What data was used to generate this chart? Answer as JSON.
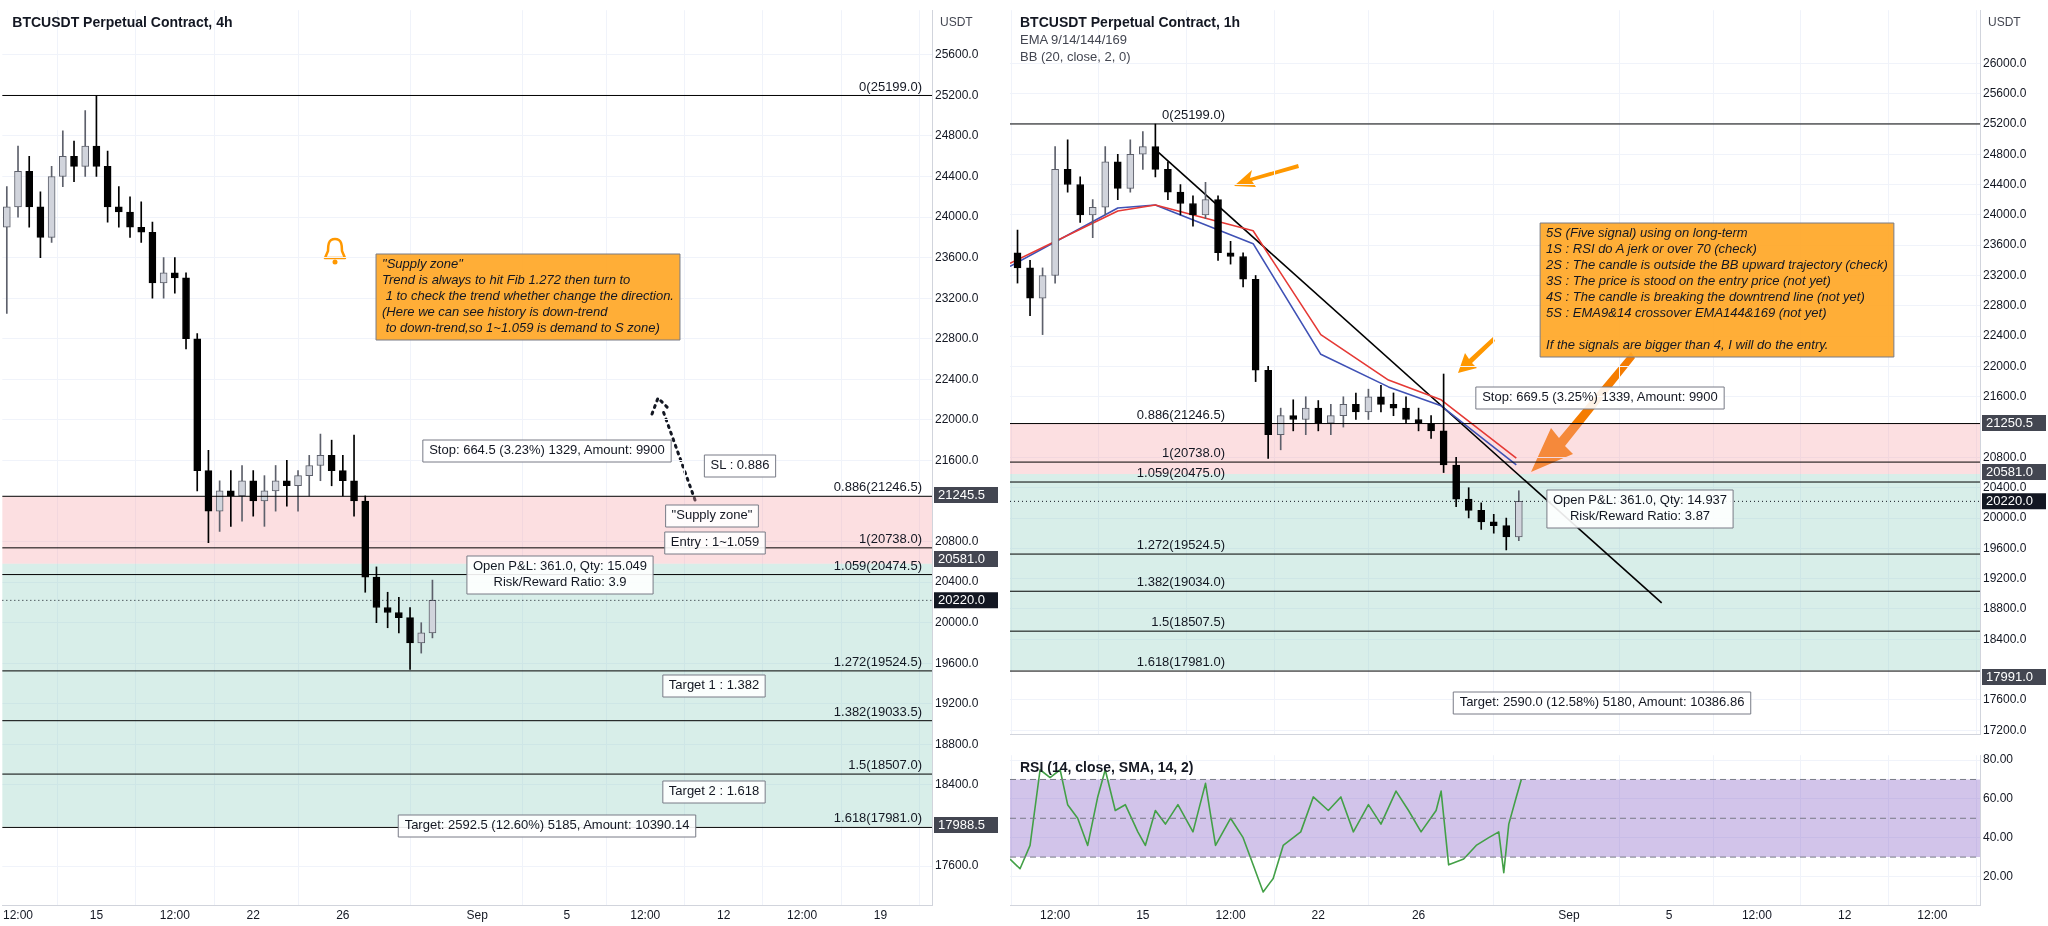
{
  "chart_data": [
    {
      "type": "candlestick",
      "title": "BTCUSDT Perpetual Contract, 4h",
      "ylabel": "USDT",
      "x": [
        "--08-11T00:00",
        "--08-11T12:00",
        "--08-12T00:00",
        "--08-12T12:00",
        "--08-13T00:00",
        "--08-13T12:00",
        "--08-14T00:00",
        "--08-14T12:00",
        "--08-15T00:00",
        "--08-15T12:00",
        "--08-16T00:00",
        "--08-16T12:00",
        "--08-17T00:00",
        "--08-17T12:00",
        "--08-18T00:00",
        "--08-18T12:00",
        "--08-19T00:00",
        "--08-19T12:00",
        "--08-20T00:00",
        "--08-20T12:00",
        "--08-21T00:00",
        "--08-21T12:00",
        "--08-22T00:00",
        "--08-22T12:00",
        "--08-23T00:00",
        "--08-23T12:00",
        "--08-24T00:00",
        "--08-24T12:00",
        "--08-25T00:00",
        "--08-25T12:00",
        "--08-26T00:00",
        "--08-26T12:00",
        "--08-27T00:00",
        "--08-27T12:00",
        "--08-28T00:00",
        "--08-28T12:00",
        "--08-29T00:00",
        "--08-29T12:00",
        "--08-30T00:00"
      ],
      "ohlc": [
        [
          23900,
          24300,
          23050,
          24100
        ],
        [
          24100,
          24700,
          24000,
          24450
        ],
        [
          24450,
          24600,
          23900,
          24100
        ],
        [
          24100,
          24250,
          23600,
          23800
        ],
        [
          23800,
          24500,
          23750,
          24400
        ],
        [
          24400,
          24850,
          24300,
          24600
        ],
        [
          24600,
          24750,
          24350,
          24500
        ],
        [
          24500,
          25050,
          24400,
          24700
        ],
        [
          24700,
          25199,
          24400,
          24500
        ],
        [
          24500,
          24650,
          23950,
          24100
        ],
        [
          24100,
          24300,
          23900,
          24050
        ],
        [
          24050,
          24200,
          23800,
          23900
        ],
        [
          23900,
          24150,
          23750,
          23850
        ],
        [
          23850,
          23950,
          23200,
          23350
        ],
        [
          23350,
          23600,
          23200,
          23450
        ],
        [
          23450,
          23600,
          23250,
          23400
        ],
        [
          23400,
          23450,
          22700,
          22800
        ],
        [
          22800,
          22850,
          21300,
          21500
        ],
        [
          21500,
          21700,
          20790,
          21100
        ],
        [
          21100,
          21400,
          20900,
          21300
        ],
        [
          21300,
          21500,
          20950,
          21250
        ],
        [
          21250,
          21550,
          21000,
          21400
        ],
        [
          21400,
          21500,
          21050,
          21200
        ],
        [
          21200,
          21450,
          20950,
          21300
        ],
        [
          21300,
          21550,
          21100,
          21400
        ],
        [
          21400,
          21600,
          21150,
          21350
        ],
        [
          21350,
          21500,
          21100,
          21450
        ],
        [
          21450,
          21650,
          21250,
          21550
        ],
        [
          21550,
          21860,
          21400,
          21650
        ],
        [
          21650,
          21800,
          21350,
          21500
        ],
        [
          21500,
          21650,
          21250,
          21400
        ],
        [
          21400,
          21850,
          21050,
          21200
        ],
        [
          21200,
          21250,
          20300,
          20450
        ],
        [
          20450,
          20550,
          20000,
          20150
        ],
        [
          20150,
          20300,
          19950,
          20100
        ],
        [
          20100,
          20250,
          19900,
          20050
        ],
        [
          20050,
          20150,
          19540,
          19800
        ],
        [
          19800,
          20000,
          19700,
          19900
        ],
        [
          19900,
          20420,
          19850,
          20220
        ]
      ],
      "xlim": [
        "--08-10T19:12",
        "--09-21T07:12"
      ],
      "xticks": [
        {
          "value": "--08-11T12:00",
          "label": "12:00"
        },
        {
          "value": "--08-15",
          "label": "15"
        },
        {
          "value": "--08-18T12:00",
          "label": "12:00"
        },
        {
          "value": "--08-22",
          "label": "22"
        },
        {
          "value": "--08-26",
          "label": "26"
        },
        {
          "value": "--09-01",
          "label": "Sep"
        },
        {
          "value": "--09-05",
          "label": "5"
        },
        {
          "value": "--09-08T12:00",
          "label": "12:00"
        },
        {
          "value": "--09-12",
          "label": "12"
        },
        {
          "value": "--09-15T12:00",
          "label": "12:00"
        },
        {
          "value": "--09-19",
          "label": "19"
        }
      ],
      "ylim": [
        17210,
        26040
      ],
      "yticks": [
        {
          "value": 17600,
          "label": "17600.0"
        },
        {
          "value": 18400,
          "label": "18400.0"
        },
        {
          "value": 18800,
          "label": "18800.0"
        },
        {
          "value": 19200,
          "label": "19200.0"
        },
        {
          "value": 19600,
          "label": "19600.0"
        },
        {
          "value": 20000,
          "label": "20000.0"
        },
        {
          "value": 20400,
          "label": "20400.0"
        },
        {
          "value": 20800,
          "label": "20800.0"
        },
        {
          "value": 21600,
          "label": "21600.0"
        },
        {
          "value": 22000,
          "label": "22000.0"
        },
        {
          "value": 22400,
          "label": "22400.0"
        },
        {
          "value": 22800,
          "label": "22800.0"
        },
        {
          "value": 23200,
          "label": "23200.0"
        },
        {
          "value": 23600,
          "label": "23600.0"
        },
        {
          "value": 24000,
          "label": "24000.0"
        },
        {
          "value": 24400,
          "label": "24400.0"
        },
        {
          "value": 24800,
          "label": "24800.0"
        },
        {
          "value": 25200,
          "label": "25200.0"
        },
        {
          "value": 25600,
          "label": "25600.0"
        }
      ],
      "grid": true,
      "bands": [
        {
          "axis": "y",
          "from": 20581,
          "to": 21245.5,
          "color": "#f5a3a9"
        },
        {
          "axis": "y",
          "from": 17988.5,
          "to": 20581,
          "color": "#8fcfc0"
        }
      ],
      "ref_lines": [
        {
          "axis": "y",
          "value": 25199,
          "label": "0(25199.0)",
          "color": "#000000"
        },
        {
          "axis": "y",
          "value": 21246.5,
          "label": "0.886(21246.5)",
          "color": "#000000"
        },
        {
          "axis": "y",
          "value": 20738,
          "label": "1(20738.0)",
          "color": "#000000"
        },
        {
          "axis": "y",
          "value": 20474.5,
          "label": "1.059(20474.5)",
          "color": "#000000"
        },
        {
          "axis": "y",
          "value": 19524.5,
          "label": "1.272(19524.5)",
          "color": "#000000"
        },
        {
          "axis": "y",
          "value": 19033.5,
          "label": "1.382(19033.5)",
          "color": "#000000"
        },
        {
          "axis": "y",
          "value": 18507,
          "label": "1.5(18507.0)",
          "color": "#000000"
        },
        {
          "axis": "y",
          "value": 17981,
          "label": "1.618(17981.0)",
          "color": "#000000"
        },
        {
          "axis": "y",
          "value": 20220,
          "label": "20220.0",
          "color": "#131722",
          "line_style": "dotted"
        }
      ],
      "annotations": [
        "\"Supply zone\"\nTrend is always to hit Fib 1.272 then turn to\n 1 to check the trend whether change the direction.\n(Here we can see history is down-trend\n to down-trend,so 1~1.059 is demand to S zone)",
        "Stop: 664.5 (3.23%) 1329, Amount: 9900",
        "SL : 0.886",
        "\"Supply zone\"",
        "Entry : 1~1.059",
        "Open P&L: 361.0, Qty: 15.049\nRisk/Reward Ratio: 3.9",
        "Target 1 : 1.382",
        "Target 2 : 1.618",
        "Target: 2592.5 (12.60%) 5185, Amount: 10390.14",
        "21245.5",
        "20581.0",
        "17988.5"
      ]
    },
    {
      "type": "candlestick",
      "title": "BTCUSDT Perpetual Contract, 1h",
      "subtitle": "EMA 9/14/144/169\nBB (20, close, 2, 0)",
      "ylabel": "USDT",
      "x": [
        "--08-10T00:00",
        "--08-10T12:00",
        "--08-11T00:00",
        "--08-11T12:00",
        "--08-12T00:00",
        "--08-12T12:00",
        "--08-13T00:00",
        "--08-13T12:00",
        "--08-14T00:00",
        "--08-14T12:00",
        "--08-15T00:00",
        "--08-15T12:00",
        "--08-16T00:00",
        "--08-16T12:00",
        "--08-17T00:00",
        "--08-17T12:00",
        "--08-18T00:00",
        "--08-18T12:00",
        "--08-19T00:00",
        "--08-19T12:00",
        "--08-20T00:00",
        "--08-20T12:00",
        "--08-21T00:00",
        "--08-21T12:00",
        "--08-22T00:00",
        "--08-22T12:00",
        "--08-23T00:00",
        "--08-23T12:00",
        "--08-24T00:00",
        "--08-24T12:00",
        "--08-25T00:00",
        "--08-25T12:00",
        "--08-26T00:00",
        "--08-26T12:00",
        "--08-27T00:00",
        "--08-27T12:00",
        "--08-28T00:00",
        "--08-28T12:00",
        "--08-29T00:00",
        "--08-29T12:00",
        "--08-30T00:00"
      ],
      "ohlc": [
        [
          23500,
          23800,
          23100,
          23300
        ],
        [
          23300,
          23400,
          22670,
          22900
        ],
        [
          22900,
          23300,
          22420,
          23200
        ],
        [
          23200,
          24900,
          23100,
          24600
        ],
        [
          24600,
          24990,
          24300,
          24400
        ],
        [
          24400,
          24500,
          23900,
          24000
        ],
        [
          24000,
          24200,
          23700,
          24100
        ],
        [
          24100,
          24900,
          24000,
          24700
        ],
        [
          24700,
          24800,
          24200,
          24350
        ],
        [
          24350,
          24990,
          24300,
          24800
        ],
        [
          24800,
          25100,
          24600,
          24900
        ],
        [
          24900,
          25199,
          24500,
          24600
        ],
        [
          24600,
          24700,
          24200,
          24300
        ],
        [
          24300,
          24400,
          24000,
          24150
        ],
        [
          24150,
          24250,
          23850,
          24000
        ],
        [
          24000,
          24430,
          23950,
          24200
        ],
        [
          24200,
          24250,
          23400,
          23500
        ],
        [
          23500,
          23650,
          23350,
          23450
        ],
        [
          23450,
          23500,
          23050,
          23150
        ],
        [
          23150,
          23200,
          21800,
          21950
        ],
        [
          21950,
          22000,
          20785,
          21100
        ],
        [
          21100,
          21450,
          20900,
          21350
        ],
        [
          21350,
          21560,
          21150,
          21300
        ],
        [
          21300,
          21600,
          21100,
          21450
        ],
        [
          21450,
          21550,
          21150,
          21250
        ],
        [
          21250,
          21500,
          21100,
          21350
        ],
        [
          21350,
          21600,
          21200,
          21500
        ],
        [
          21500,
          21650,
          21300,
          21400
        ],
        [
          21400,
          21700,
          21300,
          21600
        ],
        [
          21600,
          21750,
          21400,
          21500
        ],
        [
          21500,
          21650,
          21350,
          21450
        ],
        [
          21450,
          21600,
          21250,
          21300
        ],
        [
          21300,
          21450,
          21150,
          21250
        ],
        [
          21250,
          21350,
          21050,
          21150
        ],
        [
          21150,
          21900,
          20600,
          20700
        ],
        [
          20700,
          20800,
          20150,
          20250
        ],
        [
          20250,
          20400,
          20000,
          20100
        ],
        [
          20100,
          20200,
          19850,
          19950
        ],
        [
          19950,
          20050,
          19800,
          19900
        ],
        [
          19900,
          20000,
          19580,
          19750
        ],
        [
          19750,
          20360,
          19700,
          20220
        ]
      ],
      "series": [
        {
          "type": "line",
          "color": "#e53935",
          "x": [
            "--08-09T16:48",
            "--08-14T00:00",
            "--08-15T12:00",
            "--08-19T09:36",
            "--08-22T02:24",
            "--08-24T19:12",
            "--08-26T21:36",
            "--08-29T21:36"
          ],
          "values": [
            23360,
            24050,
            24130,
            23790,
            22420,
            21820,
            21560,
            20790
          ]
        },
        {
          "type": "line",
          "color": "#3f51b5",
          "x": [
            "--08-09T16:48",
            "--08-14T00:00",
            "--08-15T12:00",
            "--08-19T09:36",
            "--08-22T02:24",
            "--08-24T19:12",
            "--08-26T21:36",
            "--08-29T21:36"
          ],
          "values": [
            23320,
            24090,
            24130,
            23620,
            22160,
            21730,
            21480,
            20700
          ]
        },
        {
          "type": "line",
          "color": "#000000",
          "x": [
            "--08-15T12:00",
            "--09-04T16:48"
          ],
          "values": [
            24860,
            18880
          ]
        }
      ],
      "xlim": [
        "--08-09T16:48",
        "--09-17T09:36"
      ],
      "xticks": [
        {
          "value": "--08-11T12:00",
          "label": "12:00"
        },
        {
          "value": "--08-15",
          "label": "15"
        },
        {
          "value": "--08-18T12:00",
          "label": "12:00"
        },
        {
          "value": "--08-22",
          "label": "22"
        },
        {
          "value": "--08-26",
          "label": "26"
        },
        {
          "value": "--09-01",
          "label": "Sep"
        },
        {
          "value": "--09-05",
          "label": "5"
        },
        {
          "value": "--09-08T12:00",
          "label": "12:00"
        },
        {
          "value": "--09-12",
          "label": "12"
        },
        {
          "value": "--09-15T12:00",
          "label": "12:00"
        }
      ],
      "ylim": [
        17140,
        26700
      ],
      "yticks": [
        {
          "value": 17200,
          "label": "17200.0"
        },
        {
          "value": 17600,
          "label": "17600.0"
        },
        {
          "value": 18400,
          "label": "18400.0"
        },
        {
          "value": 18800,
          "label": "18800.0"
        },
        {
          "value": 19200,
          "label": "19200.0"
        },
        {
          "value": 19600,
          "label": "19600.0"
        },
        {
          "value": 20000,
          "label": "20000.0"
        },
        {
          "value": 20400,
          "label": "20400.0"
        },
        {
          "value": 20800,
          "label": "20800.0"
        },
        {
          "value": 21600,
          "label": "21600.0"
        },
        {
          "value": 22000,
          "label": "22000.0"
        },
        {
          "value": 22400,
          "label": "22400.0"
        },
        {
          "value": 22800,
          "label": "22800.0"
        },
        {
          "value": 23200,
          "label": "23200.0"
        },
        {
          "value": 23600,
          "label": "23600.0"
        },
        {
          "value": 24000,
          "label": "24000.0"
        },
        {
          "value": 24400,
          "label": "24400.0"
        },
        {
          "value": 24800,
          "label": "24800.0"
        },
        {
          "value": 25200,
          "label": "25200.0"
        },
        {
          "value": 25600,
          "label": "25600.0"
        },
        {
          "value": 26000,
          "label": "26000.0"
        }
      ],
      "tick_labels": "y",
      "grid": true,
      "bands": [
        {
          "axis": "y",
          "from": 20581,
          "to": 21250.5,
          "color": "#f5a3a9"
        },
        {
          "axis": "y",
          "from": 17991,
          "to": 20581,
          "color": "#8fcfc0"
        }
      ],
      "ref_lines": [
        {
          "axis": "y",
          "value": 25199,
          "label": "0(25199.0)",
          "color": "#000000"
        },
        {
          "axis": "y",
          "value": 21246.5,
          "label": "0.886(21246.5)",
          "color": "#000000"
        },
        {
          "axis": "y",
          "value": 20738,
          "label": "1(20738.0)",
          "color": "#000000"
        },
        {
          "axis": "y",
          "value": 20475,
          "label": "1.059(20475.0)",
          "color": "#000000"
        },
        {
          "axis": "y",
          "value": 19524.5,
          "label": "1.272(19524.5)",
          "color": "#000000"
        },
        {
          "axis": "y",
          "value": 19034,
          "label": "1.382(19034.0)",
          "color": "#000000"
        },
        {
          "axis": "y",
          "value": 18507.5,
          "label": "1.5(18507.5)",
          "color": "#000000"
        },
        {
          "axis": "y",
          "value": 17981,
          "label": "1.618(17981.0)",
          "color": "#000000"
        },
        {
          "axis": "y",
          "value": 20220,
          "label": "20220.0",
          "color": "#131722",
          "line_style": "dotted"
        }
      ],
      "annotations": [
        "5S (Five signal) using on long-term\n1S : RSI do A jerk or over 70 (check)\n2S : The candle is outside the BB upward trajectory (check)\n3S : The price is stood on the entry price (not yet)\n4S : The candle is breaking the downtrend line (not yet)\n5S : EMA9&14 crossover EMA144&169 (not yet)\n\nIf the signals are bigger than 4, I will do the entry.",
        "Stop: 669.5 (3.25%) 1339, Amount: 9900",
        "Open P&L: 361.0, Qty: 14.937\nRisk/Reward Ratio: 3.87",
        "Target: 2590.0 (12.58%) 5180, Amount: 10386.86",
        "21250.5",
        "20581.0",
        "17991.0"
      ]
    },
    {
      "type": "line",
      "title": "RSI (14, close, SMA, 14, 2)",
      "series": [
        {
          "color": "#43a047",
          "x": [
            "--08-09T16:48",
            "--08-10T02:24",
            "--08-10T12:00",
            "--08-10T21:36",
            "--08-11T07:12",
            "--08-11T16:48",
            "--08-12T00:00",
            "--08-12T09:36",
            "--08-12T19:12",
            "--08-13T04:48",
            "--08-13T12:00",
            "--08-13T21:36",
            "--08-14T07:12",
            "--08-14T19:12",
            "--08-15T02:24",
            "--08-15T12:00",
            "--08-15T21:36",
            "--08-16T09:36",
            "--08-17T00:00",
            "--08-17T12:00",
            "--08-17T21:36",
            "--08-18T12:00",
            "--08-19T00:00",
            "--08-19T09:36",
            "--08-19T19:12",
            "--08-20T04:48",
            "--08-20T14:24",
            "--08-21T07:12",
            "--08-21T19:12",
            "--08-22T09:36",
            "--08-22T21:36",
            "--08-23T09:36",
            "--08-24T00:00",
            "--08-24T12:00",
            "--08-25T02:24",
            "--08-25T14:24",
            "--08-26T02:24",
            "--08-26T16:48",
            "--08-26T21:36",
            "--08-27T04:48",
            "--08-27T19:12",
            "--08-28T07:12",
            "--08-28T19:12",
            "--08-29T04:48",
            "--08-29T09:36",
            "--08-29T14:24",
            "--08-29T21:36",
            "--08-30T02:24"
          ],
          "values": [
            29,
            24,
            36,
            75,
            71,
            75,
            57,
            50,
            36,
            61,
            75,
            54,
            57,
            43,
            36,
            54,
            47,
            57,
            43,
            68,
            36,
            50,
            40,
            26,
            12,
            19,
            36,
            43,
            61,
            54,
            61,
            43,
            57,
            47,
            64,
            54,
            43,
            54,
            64,
            26,
            29,
            36,
            40,
            43,
            22,
            47,
            61,
            70
          ]
        }
      ],
      "xlim": [
        "--08-09T16:48",
        "--09-17T09:36"
      ],
      "xticks": [
        {
          "value": "--08-11T12:00",
          "label": "12:00"
        },
        {
          "value": "--08-15",
          "label": "15"
        },
        {
          "value": "--08-18T12:00",
          "label": "12:00"
        },
        {
          "value": "--08-22",
          "label": "22"
        },
        {
          "value": "--08-26",
          "label": "26"
        },
        {
          "value": "--09-01",
          "label": "Sep"
        },
        {
          "value": "--09-05",
          "label": "5"
        },
        {
          "value": "--09-08T12:00",
          "label": "12:00"
        },
        {
          "value": "--09-12",
          "label": "12"
        },
        {
          "value": "--09-15T12:00",
          "label": "12:00"
        }
      ],
      "ylim": [
        5,
        82.5
      ],
      "yticks": [
        {
          "value": 20,
          "label": "20.00"
        },
        {
          "value": 40,
          "label": "40.00"
        },
        {
          "value": 60,
          "label": "60.00"
        },
        {
          "value": 80,
          "label": "80.00"
        }
      ],
      "grid": true,
      "line_style": "solid",
      "bands": [
        {
          "axis": "y",
          "from": 30,
          "to": 70,
          "color": "#7e57c2"
        }
      ],
      "ref_lines": [
        {
          "axis": "y",
          "value": 70,
          "color": "#787b86",
          "line_style": "dashed"
        },
        {
          "axis": "y",
          "value": 50,
          "color": "#787b86",
          "line_style": "dashed"
        },
        {
          "axis": "y",
          "value": 30,
          "color": "#787b86",
          "line_style": "dashed"
        }
      ]
    }
  ]
}
